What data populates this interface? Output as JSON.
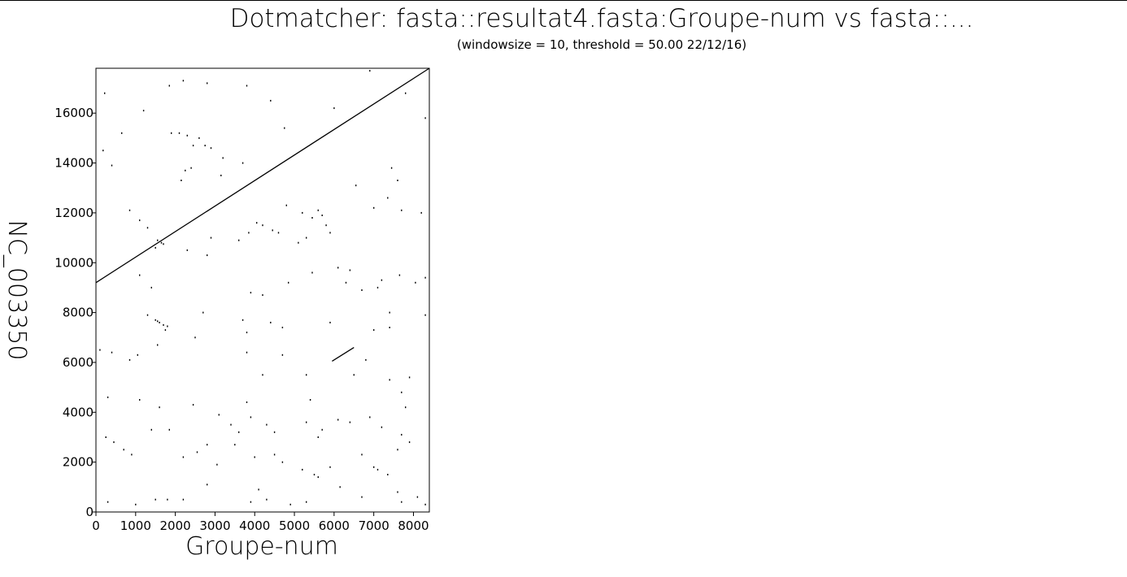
{
  "chart_data": {
    "type": "scatter",
    "title": "Dotmatcher: fasta::resultat4.fasta:Groupe-num vs fasta::...",
    "subtitle": "(windowsize = 10, threshold = 50.00  22/12/16)",
    "xlabel": "Groupe-num",
    "ylabel": "NC_003350",
    "xlim": [
      0,
      8400
    ],
    "ylim": [
      0,
      17800
    ],
    "x_ticks": [
      0,
      1000,
      2000,
      3000,
      4000,
      5000,
      6000,
      7000,
      8000
    ],
    "y_ticks": [
      0,
      2000,
      4000,
      6000,
      8000,
      10000,
      12000,
      14000,
      16000
    ],
    "grid": false,
    "lines": [
      {
        "x": [
          0,
          8400
        ],
        "y": [
          9200,
          17800
        ]
      },
      {
        "x": [
          5950,
          6500
        ],
        "y": [
          6050,
          6600
        ]
      }
    ],
    "points": [
      [
        220,
        16800
      ],
      [
        180,
        14500
      ],
      [
        650,
        15200
      ],
      [
        1200,
        16100
      ],
      [
        1850,
        17100
      ],
      [
        2200,
        17300
      ],
      [
        2800,
        17200
      ],
      [
        3800,
        17100
      ],
      [
        4400,
        16500
      ],
      [
        4750,
        15400
      ],
      [
        6000,
        16200
      ],
      [
        6900,
        17700
      ],
      [
        7800,
        16800
      ],
      [
        8300,
        15800
      ],
      [
        1900,
        15200
      ],
      [
        2100,
        15200
      ],
      [
        2300,
        15100
      ],
      [
        2600,
        15000
      ],
      [
        2750,
        14700
      ],
      [
        2900,
        14600
      ],
      [
        2450,
        14700
      ],
      [
        2250,
        13700
      ],
      [
        2150,
        13300
      ],
      [
        2400,
        13800
      ],
      [
        3200,
        14200
      ],
      [
        3700,
        14000
      ],
      [
        3150,
        13500
      ],
      [
        400,
        13900
      ],
      [
        850,
        12100
      ],
      [
        1100,
        11700
      ],
      [
        1300,
        11400
      ],
      [
        1550,
        10900
      ],
      [
        1650,
        10800
      ],
      [
        1700,
        10750
      ],
      [
        1500,
        10600
      ],
      [
        2300,
        10500
      ],
      [
        2800,
        10300
      ],
      [
        2900,
        11000
      ],
      [
        3600,
        10900
      ],
      [
        3850,
        11200
      ],
      [
        4050,
        11600
      ],
      [
        4200,
        11500
      ],
      [
        4450,
        11300
      ],
      [
        4600,
        11200
      ],
      [
        4800,
        12300
      ],
      [
        5200,
        12000
      ],
      [
        5450,
        11800
      ],
      [
        5600,
        12100
      ],
      [
        5700,
        11900
      ],
      [
        5800,
        11500
      ],
      [
        5900,
        11200
      ],
      [
        5300,
        11000
      ],
      [
        5100,
        10800
      ],
      [
        7350,
        12600
      ],
      [
        7700,
        12100
      ],
      [
        8200,
        12000
      ],
      [
        7600,
        13300
      ],
      [
        7450,
        13800
      ],
      [
        6550,
        13100
      ],
      [
        7000,
        12200
      ],
      [
        1100,
        9500
      ],
      [
        1400,
        9000
      ],
      [
        3900,
        8800
      ],
      [
        4200,
        8700
      ],
      [
        4850,
        9200
      ],
      [
        5450,
        9600
      ],
      [
        6100,
        9800
      ],
      [
        6400,
        9700
      ],
      [
        6300,
        9200
      ],
      [
        6700,
        8900
      ],
      [
        7200,
        9300
      ],
      [
        7100,
        9000
      ],
      [
        7650,
        9500
      ],
      [
        8050,
        9200
      ],
      [
        8300,
        9400
      ],
      [
        1300,
        7900
      ],
      [
        1500,
        7700
      ],
      [
        1550,
        7650
      ],
      [
        1700,
        7500
      ],
      [
        1800,
        7450
      ],
      [
        1600,
        7600
      ],
      [
        1750,
        7300
      ],
      [
        2700,
        8000
      ],
      [
        3700,
        7700
      ],
      [
        3800,
        7200
      ],
      [
        4400,
        7600
      ],
      [
        4700,
        7400
      ],
      [
        5900,
        7600
      ],
      [
        7000,
        7300
      ],
      [
        7400,
        8000
      ],
      [
        7400,
        7400
      ],
      [
        8300,
        7900
      ],
      [
        100,
        6500
      ],
      [
        400,
        6400
      ],
      [
        850,
        6100
      ],
      [
        1050,
        6300
      ],
      [
        1550,
        6700
      ],
      [
        2500,
        7000
      ],
      [
        4700,
        6300
      ],
      [
        5300,
        5500
      ],
      [
        6500,
        5500
      ],
      [
        6800,
        6100
      ],
      [
        7400,
        5300
      ],
      [
        7900,
        5400
      ],
      [
        7700,
        4800
      ],
      [
        4200,
        5500
      ],
      [
        3800,
        6400
      ],
      [
        300,
        4600
      ],
      [
        1100,
        4500
      ],
      [
        1600,
        4200
      ],
      [
        2450,
        4300
      ],
      [
        3100,
        3900
      ],
      [
        3400,
        3500
      ],
      [
        3600,
        3200
      ],
      [
        3800,
        4400
      ],
      [
        3900,
        3800
      ],
      [
        4300,
        3500
      ],
      [
        4500,
        3200
      ],
      [
        5300,
        3600
      ],
      [
        5600,
        3000
      ],
      [
        5700,
        3300
      ],
      [
        5400,
        4500
      ],
      [
        6100,
        3700
      ],
      [
        6400,
        3600
      ],
      [
        6900,
        3800
      ],
      [
        7200,
        3400
      ],
      [
        7700,
        3100
      ],
      [
        7900,
        2800
      ],
      [
        7800,
        4200
      ],
      [
        250,
        3000
      ],
      [
        450,
        2800
      ],
      [
        700,
        2500
      ],
      [
        900,
        2300
      ],
      [
        1400,
        3300
      ],
      [
        1850,
        3300
      ],
      [
        2200,
        2200
      ],
      [
        2550,
        2400
      ],
      [
        2800,
        2700
      ],
      [
        3050,
        1900
      ],
      [
        3500,
        2700
      ],
      [
        4000,
        2200
      ],
      [
        4500,
        2300
      ],
      [
        4700,
        2000
      ],
      [
        5200,
        1700
      ],
      [
        5500,
        1500
      ],
      [
        5900,
        1800
      ],
      [
        6700,
        2300
      ],
      [
        7000,
        1800
      ],
      [
        7100,
        1700
      ],
      [
        7350,
        1500
      ],
      [
        7600,
        2500
      ],
      [
        300,
        400
      ],
      [
        1000,
        300
      ],
      [
        1500,
        500
      ],
      [
        1800,
        500
      ],
      [
        2200,
        500
      ],
      [
        2800,
        1100
      ],
      [
        3900,
        400
      ],
      [
        4100,
        900
      ],
      [
        4300,
        500
      ],
      [
        4900,
        300
      ],
      [
        5300,
        400
      ],
      [
        5600,
        1400
      ],
      [
        6150,
        1000
      ],
      [
        6700,
        600
      ],
      [
        7600,
        800
      ],
      [
        7700,
        400
      ],
      [
        8100,
        600
      ],
      [
        8300,
        300
      ]
    ]
  }
}
